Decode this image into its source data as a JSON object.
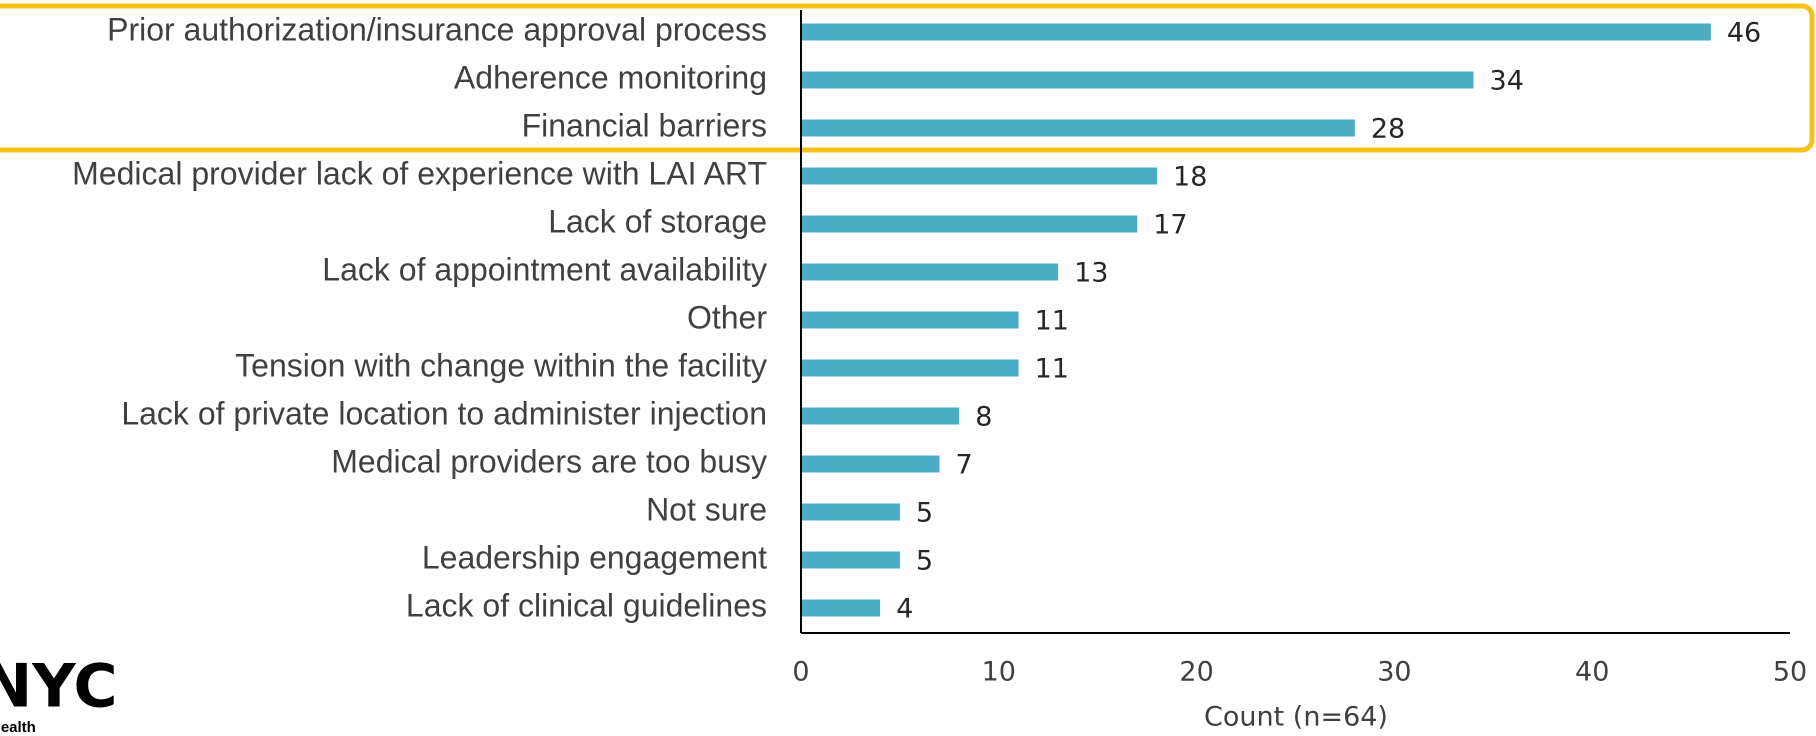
{
  "chart_data": {
    "type": "hbar",
    "categories": [
      "Prior authorization/insurance approval process",
      "Adherence monitoring",
      "Financial barriers",
      "Medical provider lack of experience with LAI ART",
      "Lack of storage",
      "Lack of appointment availability",
      "Other",
      "Tension with change within the facility",
      "Lack of private location to administer injection",
      "Medical providers are too busy",
      "Not sure",
      "Leadership engagement",
      "Lack of clinical guidelines"
    ],
    "values": [
      46,
      34,
      28,
      18,
      17,
      13,
      11,
      11,
      8,
      7,
      5,
      5,
      4
    ],
    "color": "#4bacc6",
    "xlim": [
      0,
      50
    ],
    "xticks": [
      0,
      10,
      20,
      30,
      40,
      50
    ],
    "xlabel": "Count (n=64)",
    "grid": false
  },
  "logo": {
    "name": "NYC",
    "subtitle": "Health"
  }
}
